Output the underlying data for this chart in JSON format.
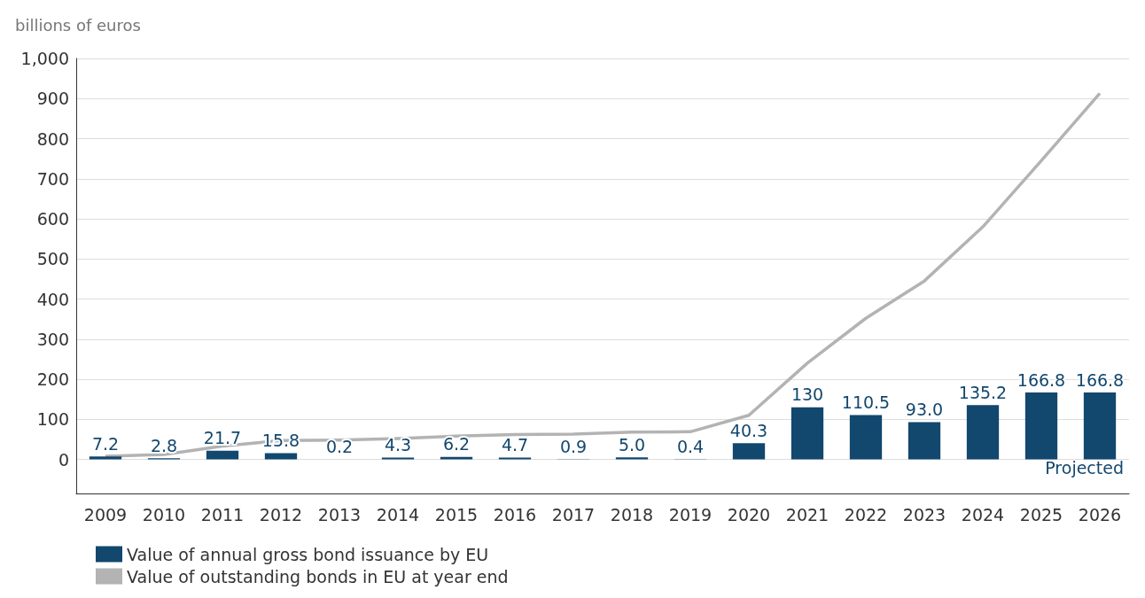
{
  "chart_data": {
    "type": "bar",
    "ylabel": "billions of euros",
    "categories": [
      "2009",
      "2010",
      "2011",
      "2012",
      "2013",
      "2014",
      "2015",
      "2016",
      "2017",
      "2018",
      "2019",
      "2020",
      "2021",
      "2022",
      "2023",
      "2024",
      "2025",
      "2026"
    ],
    "series": [
      {
        "name": "Value of annual gross bond issuance by EU",
        "color": "#12476e",
        "values": [
          7.2,
          2.8,
          21.7,
          15.8,
          0.2,
          4.3,
          6.2,
          4.7,
          0.9,
          5.0,
          0.4,
          40.3,
          130,
          110.5,
          93.0,
          135.2,
          166.8,
          166.8
        ],
        "value_labels": [
          "7.2",
          "2.8",
          "21.7",
          "15.8",
          "0.2",
          "4.3",
          "6.2",
          "4.7",
          "0.9",
          "5.0",
          "0.4",
          "40.3",
          "130",
          "110.5",
          "93.0",
          "135.2",
          "166.8",
          "166.8"
        ]
      },
      {
        "name": "Value of outstanding bonds in EU at year end",
        "type": "line",
        "color": "#b3b3b3",
        "values": [
          8,
          12,
          33,
          47,
          48,
          52,
          58,
          62,
          63,
          68,
          69,
          110,
          240,
          352,
          445,
          580,
          745,
          913
        ]
      }
    ],
    "ylim": [
      -85,
      1000
    ],
    "yticks": [
      0,
      100,
      200,
      300,
      400,
      500,
      600,
      700,
      800,
      900,
      {
        "value": 1000,
        "label": "1,000"
      }
    ],
    "grid": "y",
    "legend": "bottom left",
    "marker": "none",
    "line_style": "solid",
    "annotations": [
      "Projected"
    ]
  }
}
